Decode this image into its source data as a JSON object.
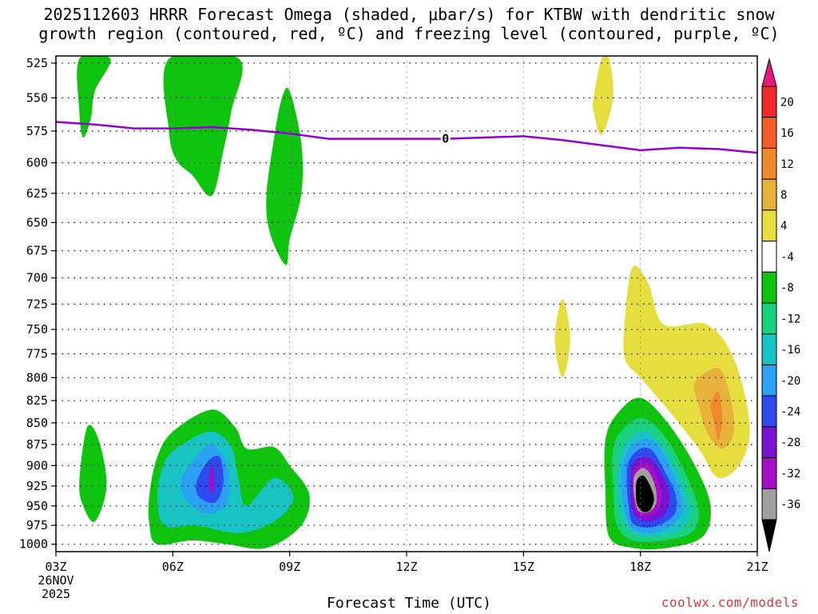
{
  "chart_data": {
    "type": "contour",
    "title_line1": "2025112603 HRRR Forecast Omega (shaded, μbar/s) for KTBW with dendritic snow",
    "title_line2": "growth region (contoured, red, ºC) and freezing level (contoured, purple, ºC)",
    "xlabel": "Forecast Time (UTC)",
    "credit": "coolwx.com/models",
    "x_ticks": [
      "03Z",
      "06Z",
      "09Z",
      "12Z",
      "15Z",
      "18Z",
      "21Z"
    ],
    "x_tick_hours": [
      3,
      6,
      9,
      12,
      15,
      18,
      21
    ],
    "x_date_line1": "26NOV",
    "x_date_line2": "2025",
    "xlim_hours": [
      3,
      21
    ],
    "y_ticks": [
      525,
      550,
      575,
      600,
      625,
      650,
      675,
      700,
      725,
      750,
      775,
      800,
      825,
      850,
      875,
      900,
      925,
      950,
      975,
      1000
    ],
    "ylim_hpa": [
      1010,
      520
    ],
    "y_scale": "log-pressure",
    "grid": true,
    "freezing_level": {
      "label": "0",
      "color": "#9400cc",
      "hours": [
        3,
        4,
        5,
        6,
        7,
        8,
        9,
        10,
        11,
        12,
        13,
        14,
        15,
        16,
        17,
        18,
        19,
        20,
        21
      ],
      "pressure": [
        568,
        570,
        573,
        573,
        572,
        574,
        577,
        581,
        581,
        581,
        581,
        580,
        579,
        582,
        586,
        590,
        588,
        589,
        592
      ]
    },
    "colorbar": {
      "labels": [
        "20",
        "16",
        "12",
        "8",
        "4",
        "-4",
        "-8",
        "-12",
        "-16",
        "-20",
        "-24",
        "-28",
        "-32",
        "-36"
      ],
      "top_arrow_color": "#e8187f",
      "bottom_arrow_color": "#000000",
      "colors": [
        "#f02a2a",
        "#f25d2a",
        "#ef8a2c",
        "#e7b13a",
        "#e6dd3e",
        "#ffffff",
        "#0ec40e",
        "#19d17c",
        "#17c3c3",
        "#2aa1f5",
        "#2e49ee",
        "#7a12d1",
        "#a80dc8",
        "#a0a0a0"
      ]
    },
    "omega_regions": [
      {
        "name": "green-blob-upper-left",
        "level": -4,
        "color": "#0ec40e",
        "points": [
          [
            3.6,
            522
          ],
          [
            4.4,
            522
          ],
          [
            4.0,
            545
          ],
          [
            3.9,
            565
          ],
          [
            3.7,
            580
          ],
          [
            3.6,
            560
          ]
        ]
      },
      {
        "name": "green-blob-upper-mid",
        "level": -4,
        "color": "#0ec40e",
        "points": [
          [
            5.9,
            522
          ],
          [
            7.7,
            522
          ],
          [
            7.5,
            560
          ],
          [
            7.3,
            590
          ],
          [
            7.0,
            627
          ],
          [
            6.5,
            610
          ],
          [
            6.1,
            598
          ],
          [
            5.9,
            575
          ]
        ]
      },
      {
        "name": "green-blob-09z",
        "level": -4,
        "color": "#0ec40e",
        "points": [
          [
            9.0,
            545
          ],
          [
            9.3,
            585
          ],
          [
            9.3,
            625
          ],
          [
            9.0,
            665
          ],
          [
            8.9,
            688
          ],
          [
            8.5,
            660
          ],
          [
            8.4,
            628
          ],
          [
            8.6,
            580
          ],
          [
            8.8,
            550
          ]
        ]
      },
      {
        "name": "green-lower-left-small",
        "level": -4,
        "color": "#0ec40e",
        "points": [
          [
            3.6,
            920
          ],
          [
            3.8,
            855
          ],
          [
            4.1,
            870
          ],
          [
            4.3,
            925
          ],
          [
            4.0,
            970
          ],
          [
            3.7,
            950
          ]
        ]
      },
      {
        "name": "green-lower-06z-09z",
        "level": -4,
        "color": "#0ec40e",
        "points": [
          [
            5.4,
            935
          ],
          [
            5.6,
            890
          ],
          [
            6.0,
            860
          ],
          [
            7.0,
            835
          ],
          [
            7.6,
            855
          ],
          [
            7.9,
            880
          ],
          [
            8.6,
            878
          ],
          [
            9.0,
            900
          ],
          [
            9.5,
            935
          ],
          [
            9.3,
            975
          ],
          [
            8.4,
            1005
          ],
          [
            7.4,
            1000
          ],
          [
            6.5,
            995
          ],
          [
            5.6,
            1000
          ],
          [
            5.4,
            975
          ]
        ]
      },
      {
        "name": "cyan-lower-06z-09z",
        "level": -12,
        "color": "#17c3c3",
        "points": [
          [
            5.6,
            940
          ],
          [
            5.8,
            895
          ],
          [
            6.3,
            873
          ],
          [
            7.0,
            860
          ],
          [
            7.5,
            878
          ],
          [
            7.7,
            920
          ],
          [
            7.9,
            950
          ],
          [
            8.6,
            915
          ],
          [
            9.1,
            940
          ],
          [
            8.6,
            970
          ],
          [
            7.7,
            985
          ],
          [
            6.6,
            975
          ],
          [
            5.8,
            975
          ]
        ]
      },
      {
        "name": "blue-lower-07z",
        "level": -16,
        "color": "#2aa1f5",
        "points": [
          [
            6.2,
            920
          ],
          [
            6.6,
            890
          ],
          [
            7.0,
            875
          ],
          [
            7.4,
            900
          ],
          [
            7.4,
            945
          ],
          [
            6.9,
            960
          ],
          [
            6.4,
            945
          ]
        ]
      },
      {
        "name": "dark-blue-lower-07z",
        "level": -20,
        "color": "#2e49ee",
        "points": [
          [
            6.6,
            922
          ],
          [
            6.9,
            895
          ],
          [
            7.2,
            890
          ],
          [
            7.3,
            920
          ],
          [
            7.1,
            945
          ],
          [
            6.7,
            940
          ]
        ]
      },
      {
        "name": "purple-core-07z",
        "level": -28,
        "color": "#a80dc8",
        "points": [
          [
            6.95,
            910
          ],
          [
            7.05,
            900
          ],
          [
            7.05,
            930
          ],
          [
            6.95,
            930
          ]
        ]
      },
      {
        "name": "yellow-upper-17z",
        "level": 4,
        "color": "#e6dd3e",
        "points": [
          [
            16.8,
            550
          ],
          [
            17.0,
            522
          ],
          [
            17.2,
            522
          ],
          [
            17.3,
            550
          ],
          [
            17.0,
            578
          ],
          [
            16.8,
            560
          ]
        ]
      },
      {
        "name": "yellow-16z",
        "level": 4,
        "color": "#e6dd3e",
        "points": [
          [
            15.8,
            760
          ],
          [
            16.0,
            720
          ],
          [
            16.2,
            760
          ],
          [
            16.0,
            800
          ]
        ]
      },
      {
        "name": "yellow-lower-right",
        "level": 4,
        "color": "#e6dd3e",
        "points": [
          [
            17.6,
            740
          ],
          [
            17.8,
            690
          ],
          [
            18.2,
            705
          ],
          [
            18.6,
            745
          ],
          [
            19.7,
            745
          ],
          [
            20.4,
            780
          ],
          [
            20.8,
            850
          ],
          [
            20.6,
            895
          ],
          [
            20.0,
            915
          ],
          [
            19.5,
            880
          ],
          [
            18.8,
            840
          ],
          [
            18.0,
            800
          ],
          [
            17.6,
            780
          ]
        ]
      },
      {
        "name": "orange-lower-right",
        "level": 8,
        "color": "#e7b13a",
        "points": [
          [
            19.4,
            805
          ],
          [
            20.0,
            790
          ],
          [
            20.3,
            820
          ],
          [
            20.4,
            860
          ],
          [
            20.1,
            880
          ],
          [
            19.7,
            860
          ],
          [
            19.5,
            830
          ]
        ]
      },
      {
        "name": "dark-orange-core",
        "level": 12,
        "color": "#ef8a2c",
        "points": [
          [
            19.8,
            830
          ],
          [
            20.0,
            815
          ],
          [
            20.1,
            845
          ],
          [
            20.0,
            870
          ],
          [
            19.9,
            850
          ]
        ]
      },
      {
        "name": "green-lower-18z",
        "level": -4,
        "color": "#0ec40e",
        "points": [
          [
            17.1,
            870
          ],
          [
            17.4,
            840
          ],
          [
            18.0,
            822
          ],
          [
            18.7,
            850
          ],
          [
            19.4,
            900
          ],
          [
            19.8,
            950
          ],
          [
            19.6,
            990
          ],
          [
            18.7,
            1005
          ],
          [
            17.8,
            1005
          ],
          [
            17.2,
            990
          ],
          [
            17.1,
            930
          ]
        ]
      },
      {
        "name": "teal-lower-18z",
        "level": -8,
        "color": "#19d17c",
        "points": [
          [
            17.3,
            880
          ],
          [
            17.6,
            855
          ],
          [
            18.1,
            845
          ],
          [
            18.7,
            870
          ],
          [
            19.3,
            925
          ],
          [
            19.5,
            960
          ],
          [
            19.3,
            985
          ],
          [
            18.6,
            995
          ],
          [
            17.8,
            995
          ],
          [
            17.4,
            975
          ],
          [
            17.3,
            930
          ]
        ]
      },
      {
        "name": "cyan-lower-18z",
        "level": -12,
        "color": "#17c3c3",
        "points": [
          [
            17.5,
            885
          ],
          [
            17.8,
            865
          ],
          [
            18.2,
            860
          ],
          [
            18.7,
            885
          ],
          [
            19.1,
            925
          ],
          [
            19.3,
            958
          ],
          [
            19.0,
            982
          ],
          [
            18.4,
            990
          ],
          [
            17.8,
            985
          ],
          [
            17.5,
            960
          ],
          [
            17.4,
            920
          ]
        ]
      },
      {
        "name": "blue-lower-18z",
        "level": -16,
        "color": "#2aa1f5",
        "points": [
          [
            17.6,
            890
          ],
          [
            17.9,
            872
          ],
          [
            18.3,
            870
          ],
          [
            18.7,
            895
          ],
          [
            19.0,
            930
          ],
          [
            19.1,
            955
          ],
          [
            18.8,
            975
          ],
          [
            18.3,
            985
          ],
          [
            17.8,
            980
          ],
          [
            17.6,
            955
          ],
          [
            17.5,
            920
          ]
        ]
      },
      {
        "name": "dark-blue-lower-18z",
        "level": -20,
        "color": "#2e49ee",
        "points": [
          [
            17.7,
            895
          ],
          [
            18.0,
            880
          ],
          [
            18.3,
            882
          ],
          [
            18.6,
            905
          ],
          [
            18.9,
            935
          ],
          [
            18.9,
            958
          ],
          [
            18.6,
            972
          ],
          [
            18.2,
            978
          ],
          [
            17.8,
            972
          ],
          [
            17.7,
            950
          ],
          [
            17.65,
            920
          ]
        ]
      },
      {
        "name": "purple-lower-18z",
        "level": -24,
        "color": "#7a12d1",
        "points": [
          [
            17.8,
            900
          ],
          [
            18.0,
            890
          ],
          [
            18.3,
            893
          ],
          [
            18.6,
            915
          ],
          [
            18.75,
            940
          ],
          [
            18.6,
            962
          ],
          [
            18.2,
            970
          ],
          [
            17.85,
            962
          ],
          [
            17.75,
            940
          ],
          [
            17.75,
            915
          ]
        ]
      },
      {
        "name": "magenta-lower-18z",
        "level": -28,
        "color": "#a80dc8",
        "points": [
          [
            17.85,
            905
          ],
          [
            18.05,
            897
          ],
          [
            18.3,
            902
          ],
          [
            18.5,
            925
          ],
          [
            18.55,
            945
          ],
          [
            18.35,
            960
          ],
          [
            18.0,
            962
          ],
          [
            17.85,
            950
          ],
          [
            17.8,
            925
          ]
        ]
      },
      {
        "name": "gray-lower-18z",
        "level": -32,
        "color": "#a0a0a0",
        "points": [
          [
            17.85,
            912
          ],
          [
            18.05,
            903
          ],
          [
            18.25,
            910
          ],
          [
            18.4,
            930
          ],
          [
            18.4,
            948
          ],
          [
            18.2,
            958
          ],
          [
            17.95,
            956
          ],
          [
            17.85,
            940
          ],
          [
            17.82,
            925
          ]
        ]
      },
      {
        "name": "black-core-18z",
        "level": -36,
        "color": "#000000",
        "points": [
          [
            17.9,
            920
          ],
          [
            18.05,
            912
          ],
          [
            18.2,
            920
          ],
          [
            18.35,
            940
          ],
          [
            18.25,
            955
          ],
          [
            18.05,
            957
          ],
          [
            17.9,
            945
          ]
        ]
      }
    ],
    "surface_strip_color": "#8b4a2b"
  }
}
